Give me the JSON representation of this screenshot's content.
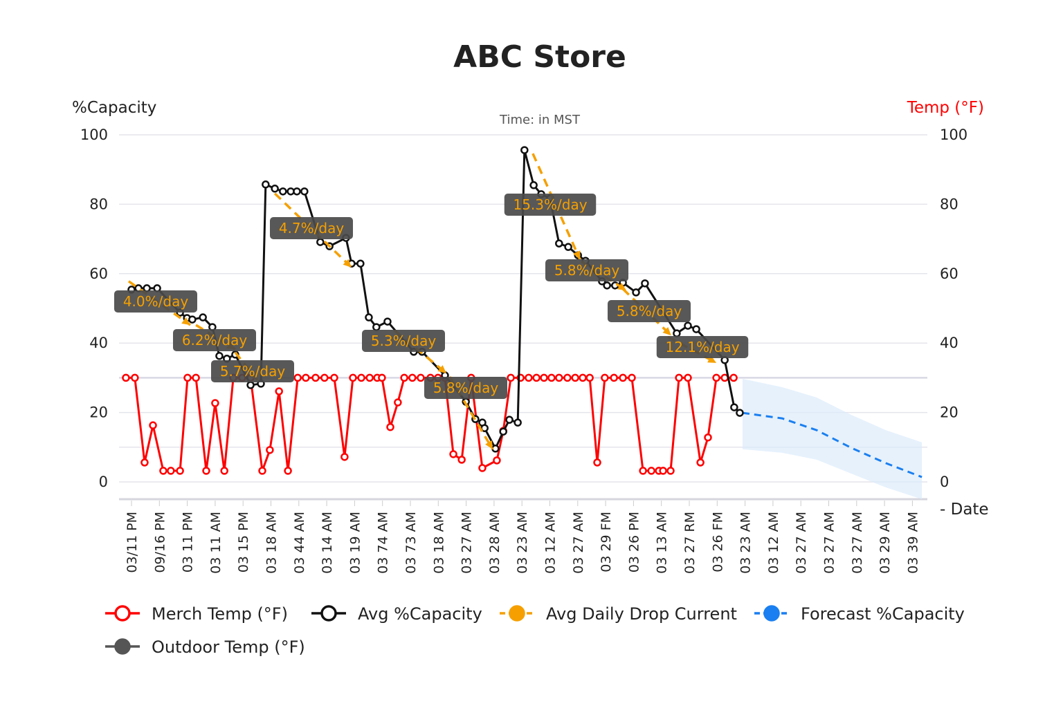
{
  "chart_data": {
    "type": "line",
    "title": "ABC Store",
    "subtitle": "Time: in MST",
    "ylabel_left": "%Capacity",
    "ylabel_right": "Temp (°F)",
    "xlabel": "- Date",
    "ylim": [
      0,
      100
    ],
    "y2lim": [
      0,
      100
    ],
    "yticks": [
      0,
      20,
      40,
      60,
      80,
      100
    ],
    "y2ticks": [
      0,
      20,
      40,
      60,
      80,
      100
    ],
    "grid": true,
    "legend_position": "bottom",
    "x_tick_labels": [
      "03/11 PM",
      "09/16 PM",
      "03 11 PM",
      "03 11 AM",
      "03 15 PM",
      "03 18 AM",
      "03 44 AM",
      "03 14 AM",
      "03 19 AM",
      "03 74 AM",
      "03 73 AM",
      "03 18 AM",
      "03 27 AM",
      "03 28 AM",
      "03 23 AM",
      "03 12 AM",
      "03 27 AM",
      "03 29 FM",
      "03 26 PM",
      "03 13 AM",
      "03 27 RM",
      "03 26 FM",
      "03 23 AM",
      "03 12 AM",
      "03 27 AM",
      "03 27 AM",
      "03 27 AM",
      "03 29 AM",
      "03 39 AM"
    ],
    "colors": {
      "merch_temp": "#ff0000",
      "avg_capacity": "#111111",
      "drop": "#f5a000",
      "forecast": "#1a7ff0",
      "forecast_band": "#dcebfb",
      "outdoor_temp": "#555555",
      "right_axis_title": "#ff0000"
    },
    "series": [
      {
        "name": "Merch Temp (°F)",
        "axis": "right",
        "style": "solid-open-markers",
        "points": [
          [
            -0.2,
            30
          ],
          [
            0.12,
            30
          ],
          [
            0.47,
            5.6
          ],
          [
            0.77,
            16.3
          ],
          [
            1.14,
            3.2
          ],
          [
            1.41,
            3.2
          ],
          [
            1.74,
            3.2
          ],
          [
            2.01,
            30
          ],
          [
            2.31,
            30
          ],
          [
            2.68,
            3.2
          ],
          [
            3.0,
            22.7
          ],
          [
            3.33,
            3.2
          ],
          [
            3.65,
            30
          ],
          [
            3.97,
            30
          ],
          [
            4.27,
            30
          ],
          [
            4.69,
            3.2
          ],
          [
            4.96,
            9.2
          ],
          [
            5.29,
            26.1
          ],
          [
            5.61,
            3.2
          ],
          [
            5.96,
            30
          ],
          [
            6.25,
            30
          ],
          [
            6.6,
            30
          ],
          [
            6.92,
            30
          ],
          [
            7.27,
            30
          ],
          [
            7.64,
            7.2
          ],
          [
            7.94,
            30
          ],
          [
            8.24,
            30
          ],
          [
            8.54,
            30
          ],
          [
            8.81,
            30
          ],
          [
            8.98,
            30
          ],
          [
            9.28,
            15.8
          ],
          [
            9.55,
            22.9
          ],
          [
            9.78,
            30
          ],
          [
            10.07,
            30
          ],
          [
            10.37,
            30
          ],
          [
            10.72,
            30
          ],
          [
            10.99,
            30
          ],
          [
            11.24,
            30
          ],
          [
            11.54,
            8.0
          ],
          [
            11.84,
            6.4
          ],
          [
            12.18,
            30
          ],
          [
            12.58,
            4.0
          ],
          [
            13.1,
            6.2
          ],
          [
            13.33,
            14.7
          ],
          [
            13.6,
            30
          ],
          [
            13.95,
            30
          ],
          [
            14.24,
            30
          ],
          [
            14.52,
            30
          ],
          [
            14.79,
            30
          ],
          [
            15.06,
            30
          ],
          [
            15.33,
            30
          ],
          [
            15.63,
            30
          ],
          [
            15.91,
            30
          ],
          [
            16.18,
            30
          ],
          [
            16.43,
            30
          ],
          [
            16.7,
            5.6
          ],
          [
            16.97,
            30
          ],
          [
            17.3,
            30
          ],
          [
            17.62,
            30
          ],
          [
            17.94,
            30
          ],
          [
            18.34,
            3.2
          ],
          [
            18.64,
            3.2
          ],
          [
            18.91,
            3.2
          ],
          [
            19.06,
            3.2
          ],
          [
            19.33,
            3.2
          ],
          [
            19.63,
            30
          ],
          [
            19.95,
            30
          ],
          [
            20.4,
            5.6
          ],
          [
            20.67,
            12.8
          ],
          [
            20.97,
            30
          ],
          [
            21.27,
            30
          ],
          [
            21.59,
            30
          ]
        ]
      },
      {
        "name": "Avg %Capacity",
        "axis": "left",
        "style": "solid-open-markers",
        "points": [
          [
            0,
            55.4
          ],
          [
            0.25,
            55.8
          ],
          [
            0.55,
            55.8
          ],
          [
            0.92,
            55.8
          ],
          [
            1.74,
            48.8
          ],
          [
            1.99,
            47.2
          ],
          [
            2.18,
            46.8
          ],
          [
            2.56,
            47.4
          ],
          [
            2.9,
            44.6
          ],
          [
            3.15,
            36.3
          ],
          [
            3.42,
            35.5
          ],
          [
            3.72,
            36.7
          ],
          [
            4.27,
            27.9
          ],
          [
            4.64,
            28.3
          ],
          [
            4.81,
            85.7
          ],
          [
            5.14,
            84.5
          ],
          [
            5.43,
            83.7
          ],
          [
            5.71,
            83.7
          ],
          [
            5.93,
            83.7
          ],
          [
            6.2,
            83.7
          ],
          [
            6.77,
            69.1
          ],
          [
            7.1,
            67.9
          ],
          [
            7.69,
            70.3
          ],
          [
            7.89,
            62.9
          ],
          [
            8.21,
            62.9
          ],
          [
            8.51,
            47.4
          ],
          [
            8.78,
            44.6
          ],
          [
            9.18,
            46.2
          ],
          [
            10.12,
            37.5
          ],
          [
            10.42,
            37.5
          ],
          [
            11.24,
            30.7
          ],
          [
            11.99,
            23.1
          ],
          [
            12.33,
            18.1
          ],
          [
            12.58,
            17.1
          ],
          [
            12.66,
            15.5
          ],
          [
            13.05,
            9.6
          ],
          [
            13.33,
            14.5
          ],
          [
            13.55,
            17.9
          ],
          [
            13.85,
            17.1
          ],
          [
            14.09,
            95.6
          ],
          [
            14.42,
            85.5
          ],
          [
            14.69,
            82.9
          ],
          [
            15.01,
            81.7
          ],
          [
            15.33,
            68.7
          ],
          [
            15.66,
            67.7
          ],
          [
            16.01,
            65.3
          ],
          [
            16.28,
            63.7
          ],
          [
            16.87,
            57.8
          ],
          [
            17.05,
            56.6
          ],
          [
            17.34,
            56.6
          ],
          [
            17.62,
            57.4
          ],
          [
            18.09,
            54.6
          ],
          [
            18.41,
            57.2
          ],
          [
            19.55,
            42.8
          ],
          [
            19.95,
            45.0
          ],
          [
            20.25,
            44.0
          ],
          [
            21.27,
            35.1
          ],
          [
            21.61,
            21.5
          ],
          [
            21.81,
            19.9
          ]
        ]
      },
      {
        "name": "Avg Daily Drop Current",
        "axis": "left",
        "style": "dashed-arrow",
        "segments": [
          {
            "label": "4.0%/day",
            "from": [
              -0.1,
              57.8
            ],
            "to": [
              2.11,
              45.2
            ]
          },
          {
            "label": "6.2%/day",
            "from": [
              2.31,
              45.2
            ],
            "to": [
              3.72,
              38.2
            ]
          },
          {
            "label": "5.7%/day",
            "from": [
              3.72,
              37.3
            ],
            "to": [
              4.52,
              29.3
            ]
          },
          {
            "label": "4.7%/day",
            "from": [
              5.14,
              83.1
            ],
            "to": [
              7.89,
              61.8
            ]
          },
          {
            "label": "5.3%/day",
            "from": [
              9.43,
              43.6
            ],
            "to": [
              11.29,
              31.3
            ]
          },
          {
            "label": "5.8%/day",
            "from": [
              11.41,
              30.3
            ],
            "to": [
              12.95,
              9.4
            ]
          },
          {
            "label": "15.3%/day",
            "from": [
              14.39,
              94.6
            ],
            "to": [
              16.08,
              64.1
            ]
          },
          {
            "label": "5.8%/day",
            "from": [
              16.13,
              63.5
            ],
            "to": [
              17.74,
              55.2
            ]
          },
          {
            "label": "5.8%/day",
            "from": [
              17.62,
              55.6
            ],
            "to": [
              19.35,
              42.2
            ]
          },
          {
            "label": "12.1%/day",
            "from": [
              19.23,
              41.8
            ],
            "to": [
              20.97,
              34.3
            ]
          }
        ]
      },
      {
        "name": "Forecast %Capacity",
        "axis": "left",
        "style": "dashed-with-band",
        "points": [
          [
            21.91,
            19.9
          ],
          [
            23.33,
            18.3
          ],
          [
            24.57,
            14.9
          ],
          [
            25.81,
            9.8
          ],
          [
            27.05,
            5.4
          ],
          [
            28.34,
            1.4
          ]
        ],
        "band_upper": [
          29.7,
          27.3,
          24.3,
          19.3,
          14.9,
          11.4
        ],
        "band_lower": [
          9.4,
          8.4,
          6.4,
          2.4,
          -1.6,
          -5.0
        ]
      },
      {
        "name": "Outdoor Temp (°F)",
        "axis": "right",
        "style": "solid-filled-markers",
        "points": []
      }
    ]
  }
}
